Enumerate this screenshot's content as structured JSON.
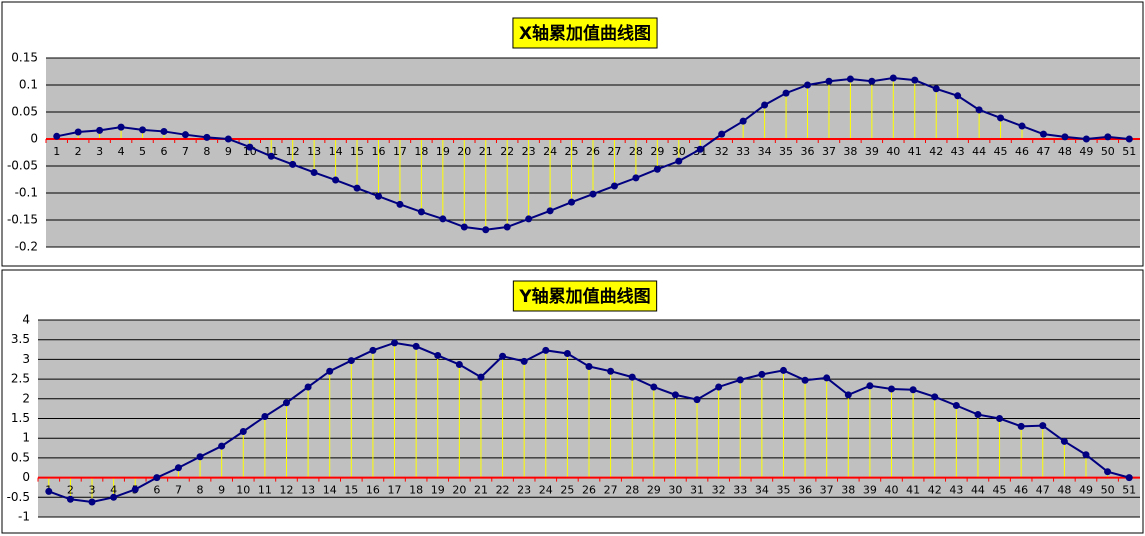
{
  "chart_data": [
    {
      "type": "line",
      "title": "X轴累加值曲线图",
      "categories": [
        1,
        2,
        3,
        4,
        5,
        6,
        7,
        8,
        9,
        10,
        11,
        12,
        13,
        14,
        15,
        16,
        17,
        18,
        19,
        20,
        21,
        22,
        23,
        24,
        25,
        26,
        27,
        28,
        29,
        30,
        31,
        32,
        33,
        34,
        35,
        36,
        37,
        38,
        39,
        40,
        41,
        42,
        43,
        44,
        45,
        46,
        47,
        48,
        49,
        50,
        51
      ],
      "values": [
        0.005,
        0.013,
        0.016,
        0.022,
        0.017,
        0.014,
        0.008,
        0.003,
        0,
        -0.015,
        -0.032,
        -0.047,
        -0.062,
        -0.076,
        -0.091,
        -0.106,
        -0.121,
        -0.135,
        -0.148,
        -0.163,
        -0.168,
        -0.163,
        -0.148,
        -0.133,
        -0.117,
        -0.102,
        -0.087,
        -0.072,
        -0.056,
        -0.041,
        -0.019,
        0.009,
        0.033,
        0.063,
        0.085,
        0.1,
        0.107,
        0.111,
        0.107,
        0.113,
        0.109,
        0.093,
        0.08,
        0.054,
        0.039,
        0.024,
        0.009,
        0.004,
        0,
        0.004,
        0
      ],
      "color": "#000080",
      "drop_line_color": "#ffff00",
      "zero_line_color": "#ff0000",
      "plot_background": "#c0c0c0",
      "ylim": [
        -0.2,
        0.15
      ],
      "yticks": [
        -0.2,
        -0.15,
        -0.1,
        -0.05,
        0,
        0.05,
        0.1,
        0.15
      ],
      "grid": true
    },
    {
      "type": "line",
      "title": "Y轴累加值曲线图",
      "categories": [
        1,
        2,
        3,
        4,
        5,
        6,
        7,
        8,
        9,
        10,
        11,
        12,
        13,
        14,
        15,
        16,
        17,
        18,
        19,
        20,
        21,
        22,
        23,
        24,
        25,
        26,
        27,
        28,
        29,
        30,
        31,
        32,
        33,
        34,
        35,
        36,
        37,
        38,
        39,
        40,
        41,
        42,
        43,
        44,
        45,
        46,
        47,
        48,
        49,
        50,
        51
      ],
      "values": [
        -0.35,
        -0.55,
        -0.62,
        -0.5,
        -0.3,
        0,
        0.25,
        0.53,
        0.8,
        1.17,
        1.55,
        1.9,
        2.3,
        2.7,
        2.97,
        3.23,
        3.42,
        3.33,
        3.1,
        2.87,
        2.55,
        3.08,
        2.95,
        3.23,
        3.15,
        2.82,
        2.7,
        2.55,
        2.3,
        2.1,
        1.98,
        2.3,
        2.48,
        2.62,
        2.72,
        2.47,
        2.53,
        2.1,
        2.33,
        2.25,
        2.23,
        2.05,
        1.83,
        1.6,
        1.5,
        1.3,
        1.32,
        0.92,
        0.58,
        0.15,
        0
      ],
      "color": "#000080",
      "drop_line_color": "#ffff00",
      "zero_line_color": "#ff0000",
      "plot_background": "#c0c0c0",
      "ylim": [
        -1,
        4
      ],
      "yticks": [
        -1,
        -0.5,
        0,
        0.5,
        1,
        1.5,
        2,
        2.5,
        3,
        3.5,
        4
      ],
      "grid": true
    }
  ]
}
